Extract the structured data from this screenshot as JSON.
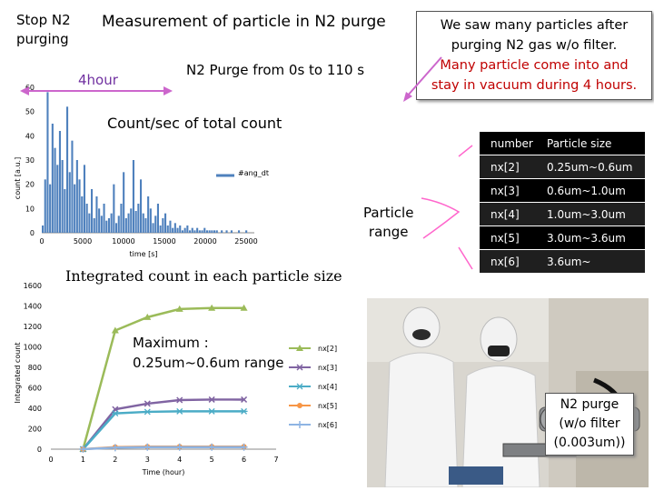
{
  "titles": {
    "stop_line1": "Stop N2",
    "stop_line2": "purging",
    "main": "Measurement of particle in N2 purge"
  },
  "note": {
    "line1": "We saw many particles after",
    "line2": "purging N2 gas w/o filter.",
    "line3": "Many particle come into and",
    "line4": "stay in vacuum during 4 hours."
  },
  "purge_label": "N2 Purge from 0s to 110 s",
  "four_hour": "4hour",
  "count_sec_title": "Count/sec of total count",
  "particle_range": {
    "line1": "Particle",
    "line2": "range"
  },
  "integrated_title": "Integrated count in each particle size",
  "maximum": {
    "line1": "Maximum :",
    "line2": "0.25um~0.6um range"
  },
  "n2_box": {
    "line1": "N2 purge",
    "line2": "(w/o filter",
    "line3": "(0.003um))"
  },
  "table": {
    "header": [
      "number",
      "Particle size"
    ],
    "rows": [
      [
        "nx[2]",
        "0.25um~0.6um"
      ],
      [
        "nx[3]",
        "0.6um~1.0um"
      ],
      [
        "nx[4]",
        "1.0um~3.0um"
      ],
      [
        "nx[5]",
        "3.0um~3.6um"
      ],
      [
        "nx[6]",
        "3.6um~"
      ]
    ]
  },
  "colors": {
    "bar": "#4f81bd",
    "nx2": "#9bbb59",
    "nx3": "#8064a2",
    "nx4": "#4bacc6",
    "nx5": "#f79646",
    "nx6": "#8eb4e3",
    "arrow": "#cc66cc",
    "note_red": "#c00000"
  },
  "chart_data": [
    {
      "type": "bar",
      "xlabel": "time [s]",
      "ylabel": "count [a.u.]",
      "xlim": [
        0,
        26000
      ],
      "ylim": [
        0,
        60
      ],
      "xticks": [
        "0",
        "5000",
        "10000",
        "15000",
        "20000",
        "25000"
      ],
      "yticks": [
        "0",
        "10",
        "20",
        "30",
        "40",
        "50",
        "60"
      ],
      "legend": "#ang_dt",
      "series": [
        {
          "name": "#ang_dt",
          "x": [
            0,
            300,
            600,
            900,
            1200,
            1500,
            1800,
            2100,
            2400,
            2700,
            3000,
            3300,
            3600,
            3900,
            4200,
            4500,
            4800,
            5100,
            5400,
            5700,
            6000,
            6300,
            6600,
            6900,
            7200,
            7500,
            7800,
            8100,
            8400,
            8700,
            9000,
            9300,
            9600,
            9900,
            10200,
            10500,
            10800,
            11100,
            11400,
            11700,
            12000,
            12300,
            12600,
            12900,
            13200,
            13500,
            13800,
            14100,
            14400,
            14700,
            15000,
            15300,
            15600,
            15900,
            16200,
            16500,
            16800,
            17100,
            17400,
            17700,
            18000,
            18300,
            18600,
            18900,
            19200,
            19500,
            19800,
            20100,
            20400,
            20700,
            21000,
            21300,
            21600,
            21900,
            22200,
            22500,
            22800,
            23100,
            23400,
            23700,
            24000,
            24300,
            24600,
            24900,
            25200
          ],
          "values": [
            3,
            22,
            58,
            20,
            45,
            35,
            28,
            42,
            30,
            18,
            52,
            25,
            38,
            20,
            30,
            22,
            15,
            28,
            12,
            8,
            18,
            6,
            15,
            10,
            7,
            12,
            5,
            6,
            8,
            20,
            4,
            7,
            12,
            25,
            6,
            8,
            10,
            30,
            9,
            12,
            22,
            8,
            6,
            15,
            10,
            4,
            7,
            12,
            3,
            6,
            8,
            3,
            5,
            2,
            4,
            2,
            3,
            1,
            2,
            3,
            1,
            2,
            1,
            2,
            1,
            1,
            2,
            1,
            1,
            1,
            1,
            1,
            0,
            1,
            0,
            1,
            0,
            1,
            0,
            0,
            1,
            0,
            0,
            1,
            0
          ]
        }
      ]
    },
    {
      "type": "line",
      "xlabel": "Time (hour)",
      "ylabel": "Integrated count",
      "xlim": [
        0,
        7
      ],
      "ylim": [
        0,
        1600
      ],
      "xticks": [
        "0",
        "1",
        "2",
        "3",
        "4",
        "5",
        "6",
        "7"
      ],
      "yticks": [
        "0",
        "200",
        "400",
        "600",
        "800",
        "1000",
        "1200",
        "1400",
        "1600"
      ],
      "x": [
        1,
        2,
        3,
        4,
        5,
        6
      ],
      "series": [
        {
          "name": "nx[2]",
          "values": [
            0,
            1160,
            1290,
            1370,
            1380,
            1380
          ]
        },
        {
          "name": "nx[3]",
          "values": [
            0,
            390,
            445,
            480,
            485,
            485
          ]
        },
        {
          "name": "nx[4]",
          "values": [
            0,
            350,
            365,
            370,
            370,
            370
          ]
        },
        {
          "name": "nx[5]",
          "values": [
            0,
            20,
            25,
            25,
            25,
            25
          ]
        },
        {
          "name": "nx[6]",
          "values": [
            0,
            15,
            20,
            20,
            20,
            20
          ]
        }
      ]
    }
  ]
}
